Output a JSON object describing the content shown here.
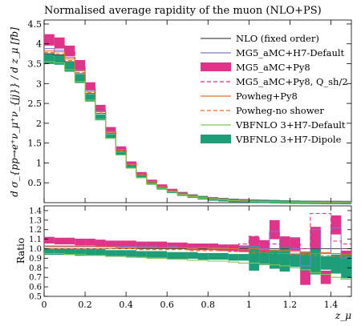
{
  "chart_data": [
    {
      "type": "line",
      "title": "Normalised average rapidity of the muon (NLO+PS)",
      "xlabel": "z_μ",
      "ylabel": "d σ_{pp→e⁺ν_μ⁺ν_{jj}} / d z_μ [fb]",
      "xlim": [
        0,
        1.5
      ],
      "ylim": [
        0,
        4.6
      ],
      "yticks": [
        "0.5",
        "1",
        "1.5",
        "2",
        "2.5",
        "3",
        "3.5",
        "4",
        "4.5"
      ],
      "bin_edges": [
        0.0,
        0.05,
        0.1,
        0.15,
        0.2,
        0.25,
        0.3,
        0.35,
        0.4,
        0.45,
        0.5,
        0.55,
        0.6,
        0.65,
        0.7,
        0.75,
        0.8,
        0.85,
        0.9,
        0.95,
        1.0,
        1.05,
        1.1,
        1.15,
        1.2,
        1.25,
        1.3,
        1.35,
        1.4,
        1.45,
        1.5
      ],
      "legend_position": "top-right",
      "series": [
        {
          "name": "NLO (fixed order)",
          "color": "#4d4d4d",
          "style": "line",
          "values": [
            3.75,
            3.72,
            3.55,
            3.25,
            2.75,
            2.25,
            1.75,
            1.3,
            0.95,
            0.7,
            0.52,
            0.4,
            0.3,
            0.22,
            0.17,
            0.13,
            0.1,
            0.08,
            0.06,
            0.05,
            0.04,
            0.03,
            0.025,
            0.02,
            0.015,
            0.01,
            0.008,
            0.006,
            0.005,
            0.004
          ]
        },
        {
          "name": "MG5_aMC+H7-Default",
          "color": "#7b7bd4",
          "style": "line",
          "values": [
            3.88,
            3.84,
            3.66,
            3.34,
            2.83,
            2.3,
            1.79,
            1.33,
            0.97,
            0.71,
            0.53,
            0.41,
            0.31,
            0.22,
            0.17,
            0.13,
            0.1,
            0.08,
            0.06,
            0.05,
            0.04,
            0.03,
            0.025,
            0.02,
            0.015,
            0.01,
            0.008,
            0.006,
            0.005,
            0.004
          ]
        },
        {
          "name": "MG5_aMC+Py8",
          "color": "#e0338a",
          "style": "band",
          "values": [
            4.1,
            4.02,
            3.82,
            3.47,
            2.93,
            2.38,
            1.84,
            1.37,
            1.0,
            0.73,
            0.54,
            0.42,
            0.31,
            0.23,
            0.17,
            0.13,
            0.1,
            0.08,
            0.06,
            0.05,
            0.04,
            0.035,
            0.028,
            0.02,
            0.015,
            0.01,
            0.008,
            0.006,
            0.006,
            0.004
          ]
        },
        {
          "name": "MG5_aMC+Py8, Q_sh/2",
          "color": "#e0338a",
          "style": "dashed",
          "values": [
            4.02,
            3.96,
            3.78,
            3.44,
            2.91,
            2.36,
            1.83,
            1.36,
            0.99,
            0.72,
            0.54,
            0.41,
            0.31,
            0.22,
            0.17,
            0.13,
            0.1,
            0.08,
            0.06,
            0.05,
            0.04,
            0.035,
            0.028,
            0.02,
            0.015,
            0.01,
            0.008,
            0.006,
            0.006,
            0.004
          ]
        },
        {
          "name": "Powheg+Py8",
          "color": "#e0702a",
          "style": "line",
          "values": [
            3.82,
            3.8,
            3.62,
            3.32,
            2.8,
            2.29,
            1.78,
            1.32,
            0.96,
            0.7,
            0.52,
            0.4,
            0.3,
            0.22,
            0.17,
            0.13,
            0.1,
            0.08,
            0.06,
            0.05,
            0.04,
            0.03,
            0.025,
            0.02,
            0.015,
            0.01,
            0.008,
            0.006,
            0.005,
            0.004
          ]
        },
        {
          "name": "Powheg-no shower",
          "color": "#e0702a",
          "style": "dashed",
          "values": [
            3.78,
            3.75,
            3.58,
            3.28,
            2.77,
            2.26,
            1.76,
            1.31,
            0.95,
            0.7,
            0.52,
            0.4,
            0.3,
            0.22,
            0.17,
            0.13,
            0.1,
            0.08,
            0.06,
            0.05,
            0.04,
            0.03,
            0.025,
            0.02,
            0.015,
            0.01,
            0.008,
            0.006,
            0.005,
            0.004
          ]
        },
        {
          "name": "VBFNLO 3+H7-Default",
          "color": "#7ec850",
          "style": "line",
          "values": [
            3.55,
            3.52,
            3.35,
            3.05,
            2.58,
            2.1,
            1.62,
            1.2,
            0.87,
            0.63,
            0.47,
            0.36,
            0.27,
            0.2,
            0.15,
            0.11,
            0.09,
            0.07,
            0.05,
            0.04,
            0.035,
            0.027,
            0.02,
            0.016,
            0.012,
            0.008,
            0.006,
            0.005,
            0.004,
            0.003
          ]
        },
        {
          "name": "VBFNLO 3+H7-Dipole",
          "color": "#1e9e78",
          "style": "band",
          "values": [
            3.62,
            3.6,
            3.42,
            3.12,
            2.64,
            2.15,
            1.67,
            1.24,
            0.9,
            0.66,
            0.49,
            0.37,
            0.28,
            0.21,
            0.16,
            0.12,
            0.09,
            0.07,
            0.055,
            0.045,
            0.035,
            0.028,
            0.022,
            0.017,
            0.013,
            0.009,
            0.007,
            0.005,
            0.004,
            0.003
          ]
        }
      ]
    },
    {
      "type": "line",
      "xlabel": "z_μ",
      "ylabel": "Ratio",
      "xlim": [
        0,
        1.5
      ],
      "ylim": [
        0.5,
        1.45
      ],
      "xticks": [
        "0",
        "0.2",
        "0.4",
        "0.6",
        "0.8",
        "1",
        "1.2",
        "1.4"
      ],
      "yticks": [
        "0.5",
        "0.6",
        "0.7",
        "0.8",
        "0.9",
        "1.0",
        "1.1",
        "1.2",
        "1.3",
        "1.4"
      ],
      "bin_edges": [
        0.0,
        0.05,
        0.1,
        0.15,
        0.2,
        0.25,
        0.3,
        0.35,
        0.4,
        0.45,
        0.5,
        0.55,
        0.6,
        0.65,
        0.7,
        0.75,
        0.8,
        0.85,
        0.9,
        0.95,
        1.0,
        1.05,
        1.1,
        1.15,
        1.2,
        1.25,
        1.3,
        1.35,
        1.4,
        1.45,
        1.5
      ],
      "series": [
        {
          "name": "NLO (fixed order)",
          "color": "#4d4d4d",
          "style": "line",
          "values": [
            1.0,
            1.0,
            1.0,
            1.0,
            1.0,
            1.0,
            1.0,
            1.0,
            1.0,
            1.0,
            1.0,
            1.0,
            1.0,
            1.0,
            1.0,
            1.0,
            1.0,
            1.0,
            1.0,
            1.0,
            1.0,
            1.0,
            1.0,
            1.0,
            1.0,
            1.0,
            1.0,
            1.0,
            1.0,
            1.0
          ]
        },
        {
          "name": "MG5_aMC+H7-Default",
          "color": "#7b7bd4",
          "style": "line",
          "values": [
            1.03,
            1.03,
            1.03,
            1.03,
            1.03,
            1.02,
            1.02,
            1.02,
            1.02,
            1.02,
            1.02,
            1.01,
            1.02,
            1.01,
            1.01,
            1.01,
            1.01,
            1.01,
            1.0,
            1.02,
            1.02,
            1.0,
            1.18,
            0.95,
            1.0,
            0.82,
            1.2,
            0.95,
            1.22,
            0.9
          ]
        },
        {
          "name": "MG5_aMC+Py8",
          "color": "#e0338a",
          "style": "band",
          "values": [
            1.09,
            1.08,
            1.08,
            1.07,
            1.07,
            1.06,
            1.05,
            1.05,
            1.05,
            1.04,
            1.04,
            1.04,
            1.03,
            1.03,
            1.02,
            1.02,
            1.02,
            1.01,
            1.01,
            1.0,
            1.0,
            1.02,
            1.2,
            1.0,
            1.05,
            0.72,
            1.1,
            0.7,
            1.25,
            0.85
          ]
        },
        {
          "name": "MG5_aMC+Py8, Q_sh/2",
          "color": "#e0338a",
          "style": "dashed",
          "values": [
            1.07,
            1.06,
            1.06,
            1.06,
            1.06,
            1.05,
            1.05,
            1.05,
            1.04,
            1.04,
            1.03,
            1.03,
            1.03,
            1.03,
            1.02,
            1.05,
            1.02,
            1.02,
            1.02,
            1.05,
            1.13,
            1.05,
            1.05,
            1.05,
            1.05,
            1.0,
            1.37,
            1.37,
            1.08,
            1.05
          ]
        },
        {
          "name": "Powheg+Py8",
          "color": "#e0702a",
          "style": "line",
          "values": [
            1.02,
            1.02,
            1.02,
            1.02,
            1.02,
            1.02,
            1.02,
            1.01,
            1.01,
            1.01,
            1.01,
            1.01,
            1.01,
            1.01,
            1.0,
            1.01,
            1.0,
            1.0,
            1.0,
            0.99,
            1.0,
            0.99,
            0.98,
            0.98,
            0.97,
            0.96,
            0.95,
            0.96,
            0.95,
            0.94
          ]
        },
        {
          "name": "Powheg-no shower",
          "color": "#e0702a",
          "style": "dashed",
          "values": [
            1.0,
            1.0,
            1.0,
            1.0,
            1.0,
            1.0,
            1.0,
            1.0,
            1.0,
            0.99,
            0.99,
            0.99,
            0.99,
            0.99,
            0.98,
            0.98,
            0.98,
            0.98,
            0.97,
            0.97,
            0.96,
            0.96,
            0.95,
            0.95,
            0.94,
            0.94,
            0.93,
            0.93,
            0.92,
            0.92
          ]
        },
        {
          "name": "VBFNLO 3+H7-Default",
          "color": "#7ec850",
          "style": "line",
          "values": [
            0.95,
            0.95,
            0.94,
            0.94,
            0.93,
            0.93,
            0.92,
            0.92,
            0.91,
            0.91,
            0.9,
            0.9,
            0.89,
            0.89,
            0.88,
            0.88,
            0.87,
            0.87,
            0.86,
            0.85,
            0.85,
            0.84,
            0.83,
            0.82,
            0.8,
            0.78,
            0.75,
            0.73,
            0.7,
            0.68
          ]
        },
        {
          "name": "VBFNLO 3+H7-Dipole",
          "color": "#1e9e78",
          "style": "band",
          "values": [
            0.97,
            0.97,
            0.97,
            0.96,
            0.96,
            0.96,
            0.95,
            0.95,
            0.95,
            0.94,
            0.94,
            0.94,
            0.93,
            0.93,
            0.93,
            0.92,
            0.92,
            0.92,
            0.91,
            0.91,
            0.9,
            0.9,
            0.89,
            0.89,
            0.88,
            0.87,
            0.86,
            0.85,
            0.84,
            0.82
          ]
        }
      ]
    }
  ]
}
